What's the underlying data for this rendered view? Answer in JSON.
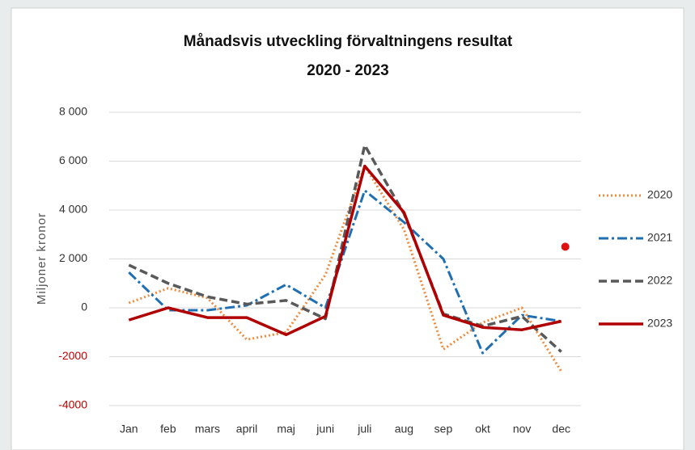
{
  "chart_data": {
    "type": "line",
    "title": "Månadsvis utveckling förvaltningens resultat",
    "subtitle": "2020 - 2023",
    "y_label": "Miljoner kronor",
    "categories": [
      "Jan",
      "feb",
      "mars",
      "april",
      "maj",
      "juni",
      "juli",
      "aug",
      "sep",
      "okt",
      "nov",
      "dec"
    ],
    "series": [
      {
        "name": "2020",
        "color": "#f08a3c",
        "style": "dotted",
        "values": [
          200,
          800,
          400,
          -1300,
          -1000,
          1350,
          5800,
          3200,
          -1700,
          -600,
          0,
          -2600
        ]
      },
      {
        "name": "2021",
        "color": "#1f6fb2",
        "style": "dashdot",
        "values": [
          1450,
          -100,
          -100,
          100,
          950,
          0,
          4800,
          3500,
          2000,
          -1850,
          -300,
          -550
        ]
      },
      {
        "name": "2022",
        "color": "#595959",
        "style": "dashed",
        "values": [
          1750,
          1000,
          450,
          150,
          300,
          -450,
          6650,
          3850,
          -250,
          -750,
          -350,
          -1800
        ]
      },
      {
        "name": "2023",
        "color": "#b00000",
        "style": "solid",
        "values": [
          -500,
          0,
          -400,
          -400,
          -1100,
          -350,
          5800,
          3900,
          -300,
          -800,
          -900,
          -550
        ]
      }
    ],
    "extra_point": {
      "x": "dec",
      "value": 2500,
      "color": "#e01010"
    },
    "ylim": [
      -4000,
      8000
    ],
    "yticks": [
      {
        "value": -4000,
        "label": "-4000"
      },
      {
        "value": -2000,
        "label": "-2000"
      },
      0,
      {
        "value": 2000,
        "label": "2 000"
      },
      {
        "value": 4000,
        "label": "4 000"
      },
      {
        "value": 6000,
        "label": "6 000"
      },
      {
        "value": 8000,
        "label": "8 000"
      }
    ],
    "grid": true,
    "legend": "right"
  }
}
